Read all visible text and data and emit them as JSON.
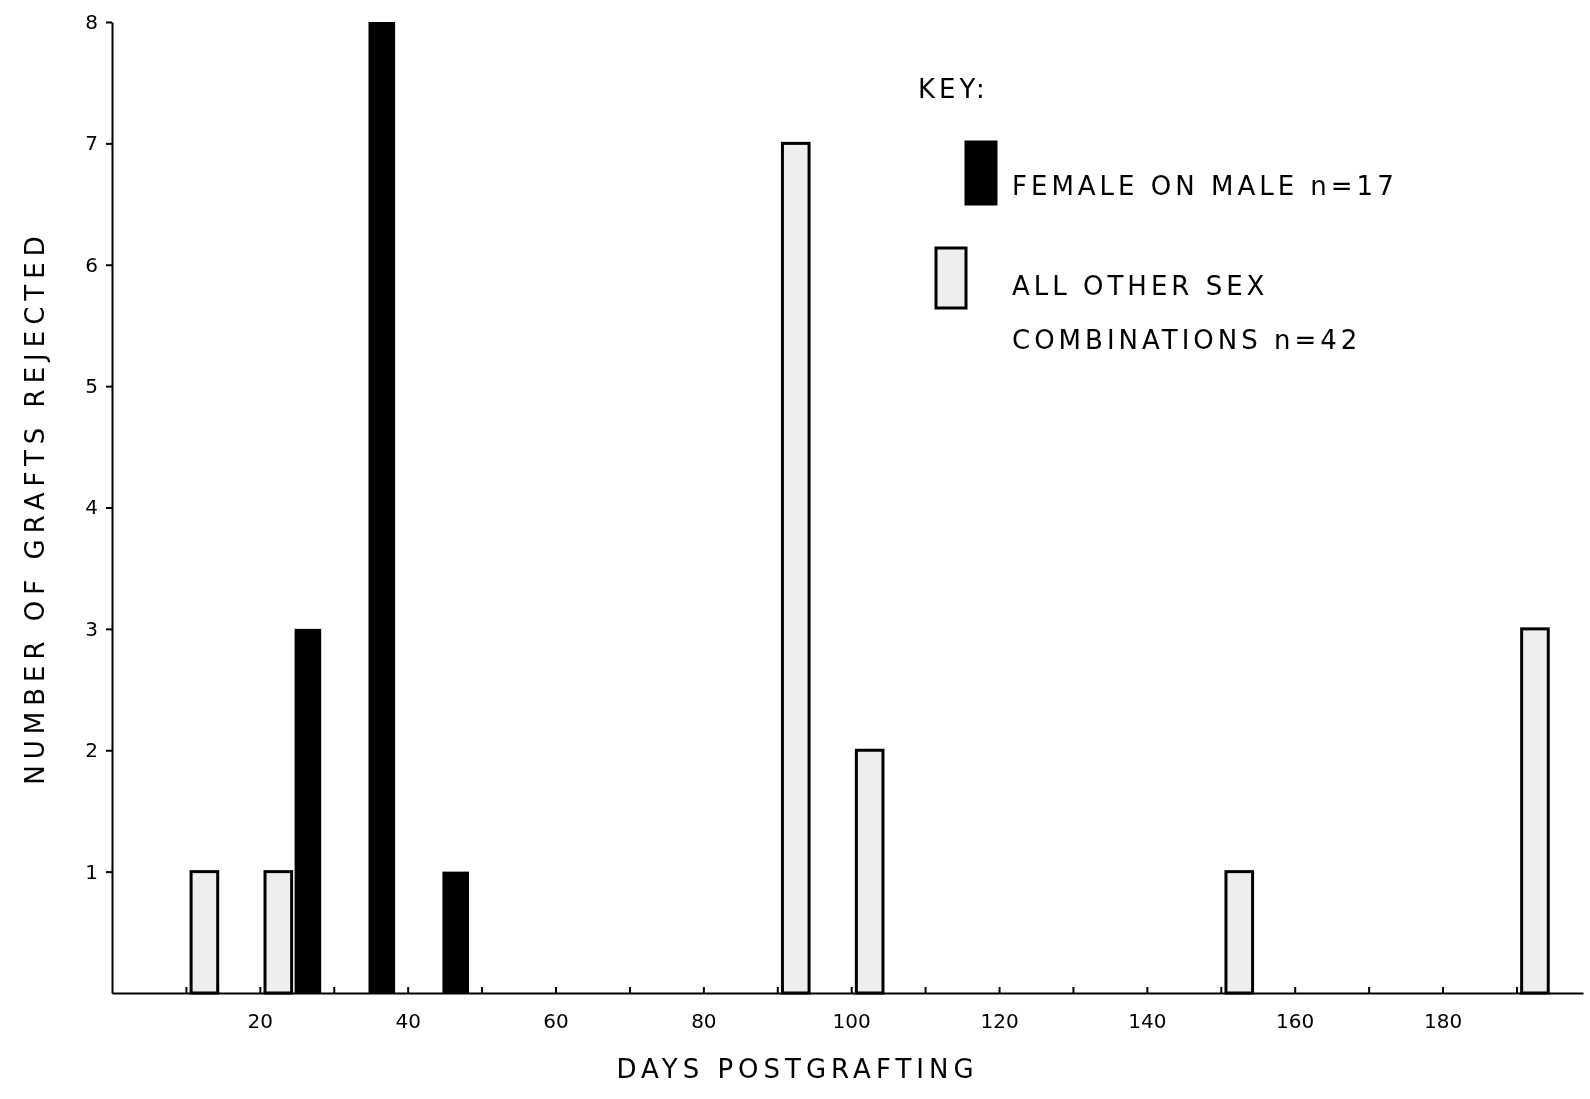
{
  "chart_data": {
    "type": "bar",
    "xlabel": "DAYS POSTGRAFTING",
    "ylabel": "NUMBER OF GRAFTS REJECTED",
    "legend_title": "KEY:",
    "legend": "top right",
    "xlim": [
      0,
      199
    ],
    "xticks": [
      {
        "value": 10,
        "label": null
      },
      20,
      {
        "value": 30,
        "label": null
      },
      40,
      {
        "value": 50,
        "label": null
      },
      60,
      {
        "value": 70,
        "label": null
      },
      80,
      {
        "value": 90,
        "label": null
      },
      100,
      {
        "value": 110,
        "label": null
      },
      120,
      {
        "value": 130,
        "label": null
      },
      140,
      {
        "value": 150,
        "label": null
      },
      160,
      {
        "value": 170,
        "label": null
      },
      180,
      {
        "value": 190,
        "label": null
      }
    ],
    "ylim": [
      0,
      8
    ],
    "yticks": [
      1,
      2,
      3,
      4,
      5,
      6,
      7,
      8
    ],
    "series": [
      {
        "name": "ALL OTHER SEX COMBINATIONS n=42",
        "color": "#eeeeee",
        "x": [
          12.5,
          22.5,
          92.5,
          102.5,
          152.5,
          192.5
        ],
        "values": [
          1,
          1,
          7,
          2,
          1,
          3
        ]
      },
      {
        "name": "FEMALE ON MALE n=17",
        "color": "#000000",
        "x": [
          26.5,
          36.5,
          46.5
        ],
        "values": [
          3,
          8,
          1
        ]
      }
    ]
  }
}
